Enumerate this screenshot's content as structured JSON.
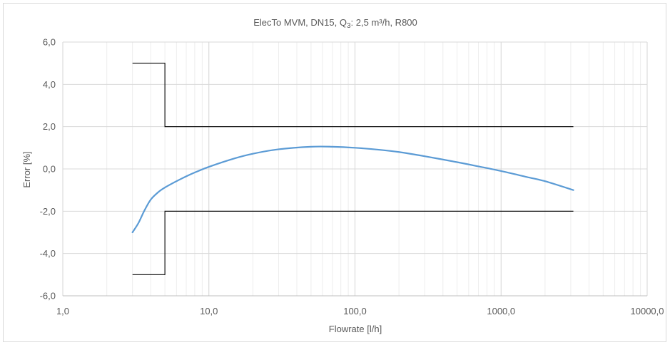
{
  "chart_data": {
    "type": "line",
    "title": "ElecTo MVM, DN15, Q3: 2,5 m³/h, R800",
    "title_parts": {
      "prefix": "ElecTo MVM, DN15, Q",
      "subscript": "3",
      "suffix": ": 2,5 m³/h, R800"
    },
    "xlabel": "Flowrate [l/h]",
    "ylabel": "Error [%]",
    "x_scale": "log",
    "xlim": [
      1,
      10000
    ],
    "ylim": [
      -6,
      6
    ],
    "x_ticks": [
      1,
      10,
      100,
      1000,
      10000
    ],
    "x_tick_labels": [
      "1,0",
      "10,0",
      "100,0",
      "1000,0",
      "10000,0"
    ],
    "y_ticks": [
      -6,
      -4,
      -2,
      0,
      2,
      4,
      6
    ],
    "y_tick_labels": [
      "-6,0",
      "-4,0",
      "-2,0",
      "0,0",
      "2,0",
      "4,0",
      "6,0"
    ],
    "grid": true,
    "legend": "none",
    "series": [
      {
        "color": "#5b9bd5",
        "x": [
          3.0,
          3.3,
          3.6,
          4.0,
          4.5,
          5.0,
          6.0,
          7.0,
          8.0,
          10.0,
          15.0,
          20.0,
          30.0,
          50.0,
          70.0,
          100.0,
          150.0,
          200.0,
          300.0,
          500.0,
          700.0,
          1000.0,
          1500.0,
          2000.0,
          3125.0
        ],
        "y": [
          -3.0,
          -2.55,
          -2.0,
          -1.45,
          -1.1,
          -0.88,
          -0.58,
          -0.35,
          -0.17,
          0.1,
          0.5,
          0.72,
          0.93,
          1.05,
          1.05,
          1.0,
          0.9,
          0.8,
          0.6,
          0.32,
          0.12,
          -0.1,
          -0.38,
          -0.58,
          -1.0
        ]
      },
      {
        "color": "#000000",
        "x": [
          3.0,
          5.0,
          5.0,
          3125.0
        ],
        "y": [
          5.0,
          5.0,
          2.0,
          2.0
        ]
      },
      {
        "color": "#000000",
        "x": [
          3.0,
          5.0,
          5.0,
          3125.0
        ],
        "y": [
          -5.0,
          -5.0,
          -2.0,
          -2.0
        ]
      }
    ]
  }
}
